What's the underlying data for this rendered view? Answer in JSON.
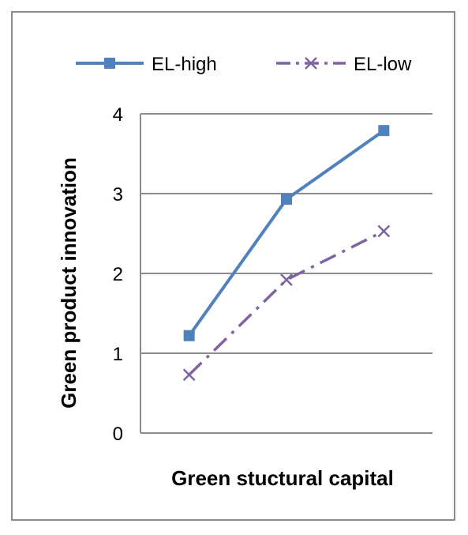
{
  "chart_data": {
    "type": "line",
    "title": "",
    "xlabel": "Green stuctural capital",
    "ylabel": "Green product innovation",
    "x": [
      1,
      2,
      3
    ],
    "ylim": [
      0,
      4
    ],
    "yticks": [
      "0",
      "1",
      "2",
      "3",
      "4"
    ],
    "grid": true,
    "legend_position": "top",
    "series": [
      {
        "name": "EL-high",
        "values": [
          1.22,
          2.93,
          3.79
        ],
        "color": "#4f81bd",
        "marker": "square",
        "line_style": "solid"
      },
      {
        "name": "EL-low",
        "values": [
          0.73,
          1.92,
          2.53
        ],
        "color": "#8064a2",
        "marker": "x",
        "line_style": "dash-dot"
      }
    ]
  }
}
